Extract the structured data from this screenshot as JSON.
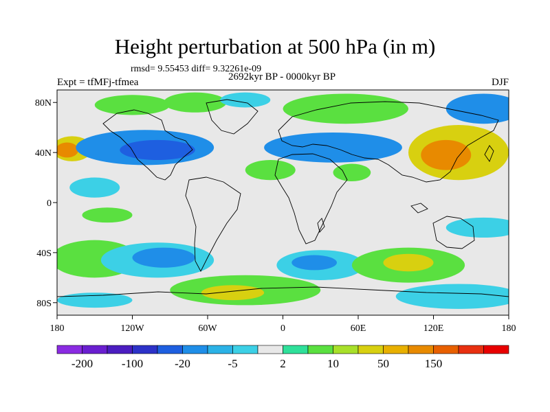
{
  "chart_data": {
    "type": "heatmap",
    "title": "Height perturbation at 500 hPa (in m)",
    "stats_text": "rmsd= 9.55453 diff= 9.32261e-09",
    "left_label": "Expt = tfMFj-tfmea",
    "center_label": "2692kyr BP - 0000kyr BP",
    "right_label": "DJF",
    "x_ticks": [
      {
        "value": -180,
        "label": "180"
      },
      {
        "value": -120,
        "label": "120W"
      },
      {
        "value": -60,
        "label": "60W"
      },
      {
        "value": 0,
        "label": "0"
      },
      {
        "value": 60,
        "label": "60E"
      },
      {
        "value": 120,
        "label": "120E"
      },
      {
        "value": 180,
        "label": "180"
      }
    ],
    "y_ticks": [
      {
        "value": 80,
        "label": "80N"
      },
      {
        "value": 40,
        "label": "40N"
      },
      {
        "value": 0,
        "label": "0"
      },
      {
        "value": -40,
        "label": "40S"
      },
      {
        "value": -80,
        "label": "80S"
      }
    ],
    "xlim": [
      -180,
      180
    ],
    "ylim": [
      -90,
      90
    ],
    "colorbar": {
      "colors": [
        "#8a2be2",
        "#6a1fd0",
        "#4b1dc0",
        "#2d32c8",
        "#1e5fe0",
        "#1f8ee8",
        "#2bb2e6",
        "#3cd0e6",
        "#e8e8e8",
        "#2fe09a",
        "#5ae040",
        "#a8e02a",
        "#d8d010",
        "#e8b000",
        "#e88a00",
        "#e86000",
        "#e83010",
        "#e80000"
      ],
      "labels": [
        {
          "index": 1,
          "text": "-200"
        },
        {
          "index": 3,
          "text": "-100"
        },
        {
          "index": 5,
          "text": "-20"
        },
        {
          "index": 7,
          "text": "-5"
        },
        {
          "index": 9,
          "text": "2"
        },
        {
          "index": 11,
          "text": "10"
        },
        {
          "index": 13,
          "text": "50"
        },
        {
          "index": 15,
          "text": "150"
        }
      ]
    },
    "anomaly_regions": [
      {
        "lon": -168,
        "lat": 43,
        "rlon": 16,
        "rlat": 10,
        "level": "pos_mid"
      },
      {
        "lon": -172,
        "lat": 42,
        "rlon": 9,
        "rlat": 6,
        "level": "pos_high"
      },
      {
        "lon": -110,
        "lat": 44,
        "rlon": 55,
        "rlat": 14,
        "level": "neg_mid"
      },
      {
        "lon": -100,
        "lat": 42,
        "rlon": 30,
        "rlat": 8,
        "level": "neg_strong"
      },
      {
        "lon": -120,
        "lat": 78,
        "rlon": 30,
        "rlat": 8,
        "level": "pos_low"
      },
      {
        "lon": -70,
        "lat": 80,
        "rlon": 25,
        "rlat": 8,
        "level": "pos_low"
      },
      {
        "lon": -30,
        "lat": 82,
        "rlon": 20,
        "rlat": 6,
        "level": "neg_light"
      },
      {
        "lon": 50,
        "lat": 75,
        "rlon": 50,
        "rlat": 12,
        "level": "pos_low"
      },
      {
        "lon": 40,
        "lat": 44,
        "rlon": 55,
        "rlat": 12,
        "level": "neg_mid"
      },
      {
        "lon": -10,
        "lat": 26,
        "rlon": 20,
        "rlat": 8,
        "level": "pos_low"
      },
      {
        "lon": 55,
        "lat": 24,
        "rlon": 15,
        "rlat": 7,
        "level": "pos_low"
      },
      {
        "lon": 140,
        "lat": 40,
        "rlon": 40,
        "rlat": 22,
        "level": "pos_mid"
      },
      {
        "lon": 130,
        "lat": 38,
        "rlon": 20,
        "rlat": 12,
        "level": "pos_high"
      },
      {
        "lon": 160,
        "lat": 75,
        "rlon": 30,
        "rlat": 12,
        "level": "neg_mid"
      },
      {
        "lon": -150,
        "lat": 12,
        "rlon": 20,
        "rlat": 8,
        "level": "neg_light"
      },
      {
        "lon": -140,
        "lat": -10,
        "rlon": 20,
        "rlat": 6,
        "level": "pos_low"
      },
      {
        "lon": -150,
        "lat": -45,
        "rlon": 35,
        "rlat": 15,
        "level": "pos_low"
      },
      {
        "lon": -100,
        "lat": -46,
        "rlon": 45,
        "rlat": 14,
        "level": "neg_light"
      },
      {
        "lon": -95,
        "lat": -44,
        "rlon": 25,
        "rlat": 8,
        "level": "neg_mid"
      },
      {
        "lon": -30,
        "lat": -70,
        "rlon": 60,
        "rlat": 12,
        "level": "pos_low"
      },
      {
        "lon": -40,
        "lat": -72,
        "rlon": 25,
        "rlat": 6,
        "level": "pos_mid"
      },
      {
        "lon": 30,
        "lat": -50,
        "rlon": 35,
        "rlat": 12,
        "level": "neg_light"
      },
      {
        "lon": 25,
        "lat": -48,
        "rlon": 18,
        "rlat": 6,
        "level": "neg_mid"
      },
      {
        "lon": 100,
        "lat": -50,
        "rlon": 45,
        "rlat": 14,
        "level": "pos_low"
      },
      {
        "lon": 100,
        "lat": -48,
        "rlon": 20,
        "rlat": 7,
        "level": "pos_mid"
      },
      {
        "lon": 140,
        "lat": -75,
        "rlon": 50,
        "rlat": 10,
        "level": "neg_light"
      },
      {
        "lon": 160,
        "lat": -20,
        "rlon": 30,
        "rlat": 8,
        "level": "neg_light"
      },
      {
        "lon": -150,
        "lat": -78,
        "rlon": 30,
        "rlat": 6,
        "level": "neg_light"
      }
    ]
  }
}
